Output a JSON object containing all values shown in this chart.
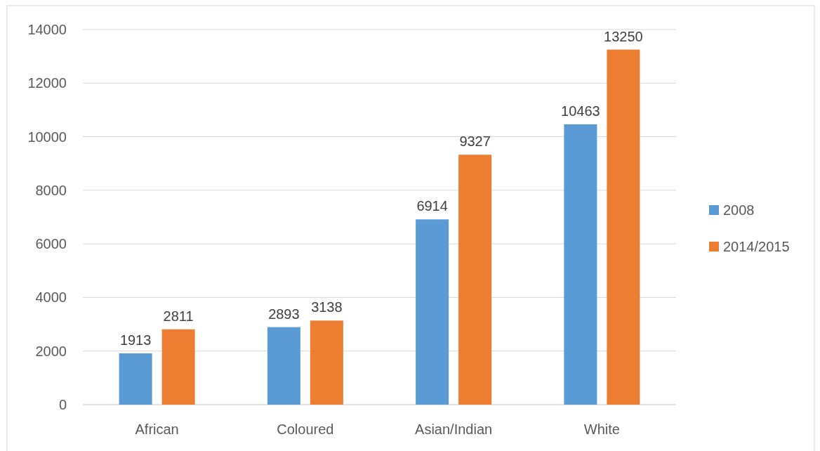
{
  "chart_data": {
    "type": "bar",
    "categories": [
      "African",
      "Coloured",
      "Asian/Indian",
      "White"
    ],
    "series": [
      {
        "name": "2008",
        "color": "#5b9bd5",
        "values": [
          1913,
          2893,
          6914,
          10463
        ]
      },
      {
        "name": "2014/2015",
        "color": "#ed7d31",
        "values": [
          2811,
          3138,
          9327,
          13250
        ]
      }
    ],
    "ylim": [
      0,
      14000
    ],
    "yticks": [
      0,
      2000,
      4000,
      6000,
      8000,
      10000,
      12000,
      14000
    ],
    "grid": "y",
    "legend": "right",
    "data_labels": true
  }
}
